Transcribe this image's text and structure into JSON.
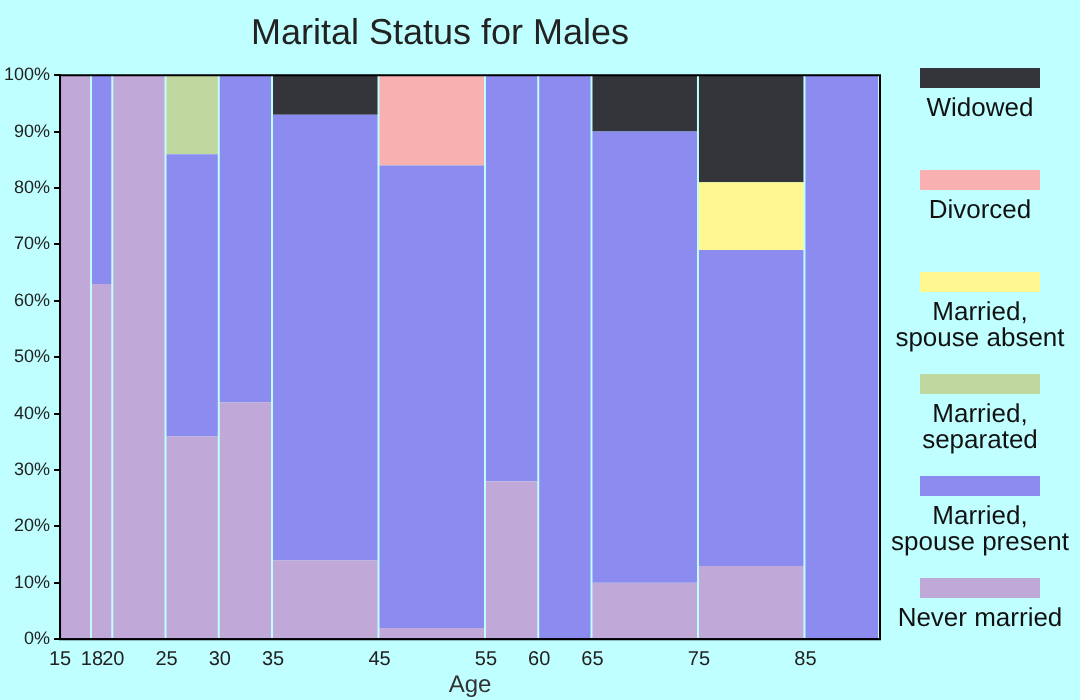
{
  "chart_data": {
    "type": "bar",
    "title": "Marital Status for Males",
    "xlabel": "Age",
    "stacked": true,
    "x": [
      16.5,
      19,
      22.5,
      27.5,
      32.5,
      40,
      50,
      57.5,
      62.5,
      70,
      80,
      88.5
    ],
    "xlim": [
      15,
      92
    ],
    "xticks": [
      15,
      18,
      20,
      25,
      30,
      35,
      45,
      55,
      60,
      65,
      75,
      85
    ],
    "ylim": [
      0,
      100
    ],
    "yticks": [
      {
        "value": 0,
        "label": "0%"
      },
      {
        "value": 10,
        "label": "10%"
      },
      {
        "value": 20,
        "label": "20%"
      },
      {
        "value": 30,
        "label": "30%"
      },
      {
        "value": 40,
        "label": "40%"
      },
      {
        "value": 50,
        "label": "50%"
      },
      {
        "value": 60,
        "label": "60%"
      },
      {
        "value": 70,
        "label": "70%"
      },
      {
        "value": 80,
        "label": "80%"
      },
      {
        "value": 90,
        "label": "90%"
      },
      {
        "value": 100,
        "label": "100%"
      }
    ],
    "series": [
      {
        "name": "Never married",
        "color": "#c0a8d8",
        "values": [
          100,
          63,
          100,
          36,
          42,
          14,
          2,
          28,
          0,
          10,
          13,
          0
        ]
      },
      {
        "name": "Married, spouse present",
        "color": "#8c8cf0",
        "values": [
          0,
          37,
          0,
          50,
          58,
          79,
          82,
          72,
          100,
          80,
          56,
          100
        ]
      },
      {
        "name": "Married, separated",
        "color": "#c0d8a0",
        "values": [
          0,
          0,
          0,
          14,
          0,
          0,
          0,
          0,
          0,
          0,
          0,
          0
        ]
      },
      {
        "name": "Married, spouse absent",
        "color": "#fff890",
        "values": [
          0,
          0,
          0,
          0,
          0,
          0,
          0,
          0,
          0,
          0,
          12,
          0
        ]
      },
      {
        "name": "Divorced",
        "color": "#f8b0b0",
        "values": [
          0,
          0,
          0,
          0,
          0,
          0,
          16,
          0,
          0,
          0,
          0,
          0
        ]
      },
      {
        "name": "Widowed",
        "color": "#34353b",
        "values": [
          0,
          0,
          0,
          0,
          0,
          7,
          0,
          0,
          0,
          10,
          19,
          0
        ]
      }
    ],
    "grid": false,
    "legend": "right"
  }
}
